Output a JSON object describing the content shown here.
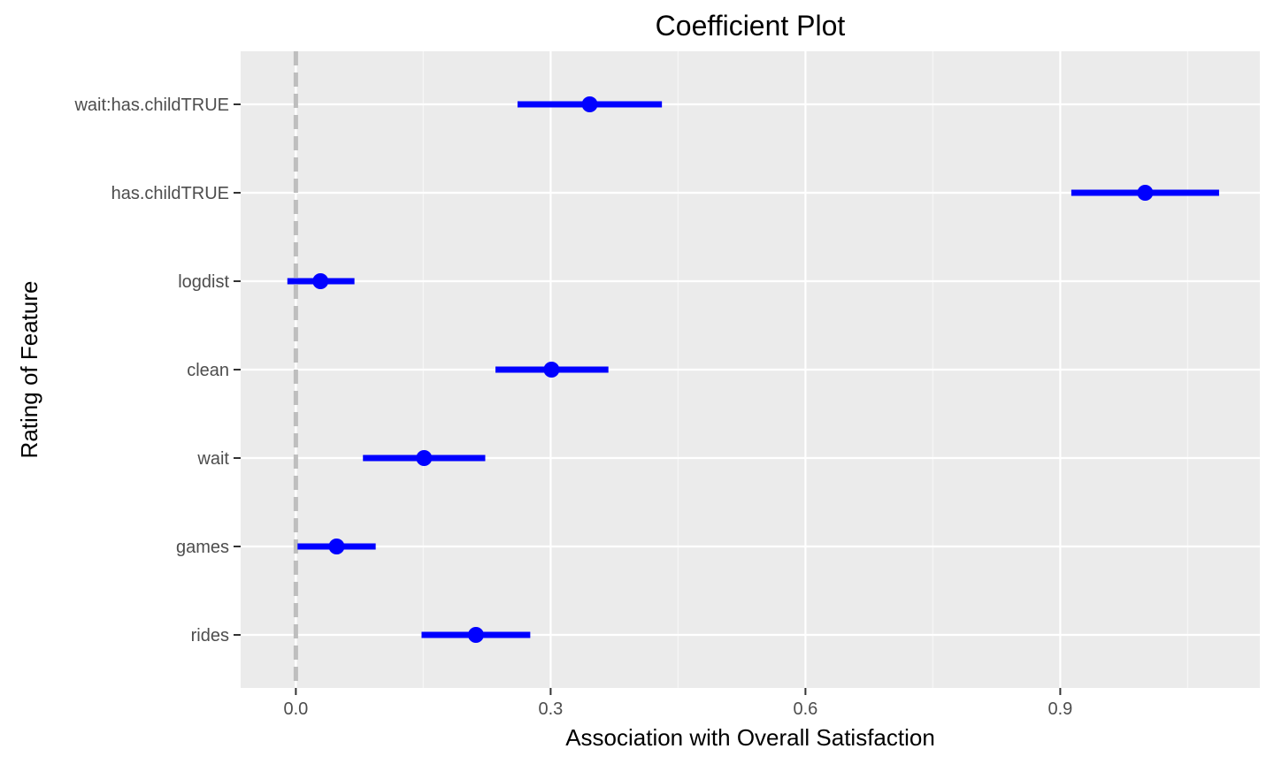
{
  "chart_data": {
    "type": "coefficient-plot",
    "title": "Coefficient Plot",
    "xlabel": "Association with Overall Satisfaction",
    "ylabel": "Rating of Feature",
    "xlim": [
      -0.065,
      1.135
    ],
    "x_ticks": [
      0.0,
      0.3,
      0.6,
      0.9
    ],
    "x_tick_labels": [
      "0.0",
      "0.3",
      "0.6",
      "0.9"
    ],
    "categories": [
      "rides",
      "games",
      "wait",
      "clean",
      "logdist",
      "has.childTRUE",
      "wait:has.childTRUE"
    ],
    "estimates": [
      0.212,
      0.048,
      0.151,
      0.301,
      0.029,
      1.0,
      0.346
    ],
    "lower": [
      0.148,
      0.002,
      0.079,
      0.235,
      -0.01,
      0.913,
      0.261
    ],
    "upper": [
      0.276,
      0.094,
      0.223,
      0.368,
      0.069,
      1.087,
      0.431
    ],
    "reference_line": 0.0,
    "grid": true,
    "legend": "none",
    "colors": {
      "panel": "#ebebeb",
      "grid_major": "#ffffff",
      "grid_minor": "#f5f5f5",
      "estimate": "#0000ff",
      "reference_line": "#bebebe",
      "tick_text": "#4d4d4d",
      "tick_mark": "#333333"
    }
  }
}
